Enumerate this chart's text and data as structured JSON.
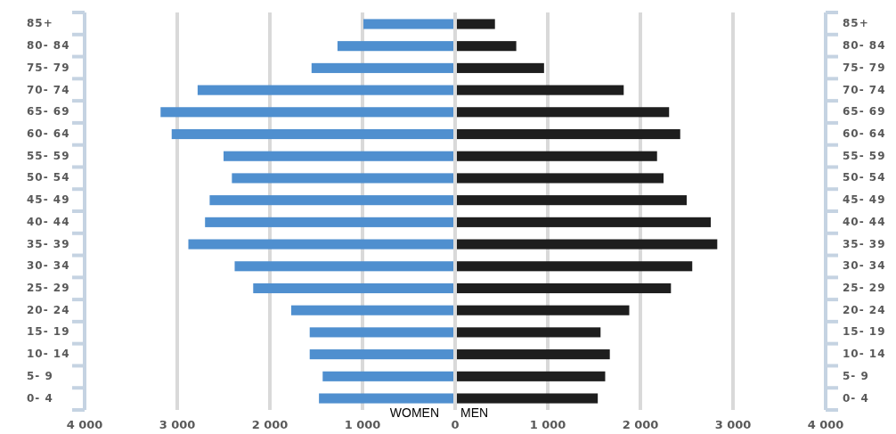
{
  "chart_data": {
    "type": "bar",
    "orientation": "horizontal",
    "stacked": true,
    "categories": [
      "85+",
      "80- 84",
      "75- 79",
      "70- 74",
      "65- 69",
      "60- 64",
      "55- 59",
      "50- 54",
      "45- 49",
      "40- 44",
      "35- 39",
      "30- 34",
      "25- 29",
      "20- 24",
      "15- 19",
      "10- 14",
      "5- 9",
      "0- 4"
    ],
    "series": [
      {
        "name": "WOMEN",
        "color": "#4f8fcf",
        "values": [
          -990,
          -1270,
          -1550,
          -2780,
          -3180,
          -3060,
          -2500,
          -2410,
          -2650,
          -2700,
          -2880,
          -2380,
          -2180,
          -1770,
          -1570,
          -1570,
          -1430,
          -1470
        ]
      },
      {
        "name": "MEN",
        "color": "#1e1e1e",
        "values": [
          430,
          660,
          960,
          1820,
          2310,
          2430,
          2180,
          2250,
          2500,
          2760,
          2830,
          2560,
          2330,
          1880,
          1570,
          1670,
          1620,
          1540
        ]
      }
    ],
    "xlim": [
      -4000,
      4000
    ],
    "xticks": [
      {
        "value": -4000,
        "label": "4 000"
      },
      {
        "value": -3000,
        "label": "3 000"
      },
      {
        "value": -2000,
        "label": "2 000"
      },
      {
        "value": -1000,
        "label": "1 000"
      },
      0,
      {
        "value": 1000,
        "label": "1 000"
      },
      {
        "value": 2000,
        "label": "2 000"
      },
      {
        "value": 3000,
        "label": "3 000"
      },
      {
        "value": 4000,
        "label": "4 000"
      }
    ],
    "grid": "x"
  }
}
